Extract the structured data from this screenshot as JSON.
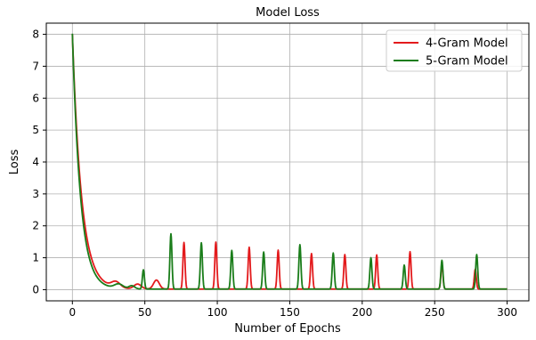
{
  "chart_data": {
    "type": "line",
    "title": "Model Loss",
    "xlabel": "Number of Epochs",
    "ylabel": "Loss",
    "xlim": [
      -18,
      315
    ],
    "ylim": [
      -0.35,
      8.35
    ],
    "xticks": [
      0,
      50,
      100,
      150,
      200,
      250,
      300
    ],
    "yticks": [
      0,
      1,
      2,
      3,
      4,
      5,
      6,
      7,
      8
    ],
    "grid": true,
    "legend": "top-right",
    "series": [
      {
        "name": "4-Gram Model",
        "color": "#e31a1c",
        "start": 8.0,
        "k": 0.16,
        "floor": 0.02,
        "extra": [
          [
            30,
            0.18,
            3
          ],
          [
            45,
            0.15,
            2.5
          ],
          [
            58,
            0.28,
            2
          ]
        ],
        "spikes": [
          [
            77,
            1.46
          ],
          [
            99,
            1.47
          ],
          [
            122,
            1.31
          ],
          [
            142,
            1.22
          ],
          [
            165,
            1.11
          ],
          [
            188,
            1.08
          ],
          [
            210,
            1.07
          ],
          [
            233,
            1.17
          ],
          [
            255,
            0.78
          ],
          [
            278,
            0.62
          ]
        ]
      },
      {
        "name": "5-Gram Model",
        "color": "#1a7d1a",
        "start": 8.02,
        "k": 0.18,
        "floor": 0.02,
        "extra": [
          [
            32,
            0.14,
            3
          ],
          [
            41,
            0.1,
            2
          ]
        ],
        "spikes": [
          [
            49,
            0.6
          ],
          [
            68,
            1.73
          ],
          [
            89,
            1.45
          ],
          [
            110,
            1.21
          ],
          [
            132,
            1.16
          ],
          [
            157,
            1.39
          ],
          [
            180,
            1.13
          ],
          [
            206,
            0.98
          ],
          [
            229,
            0.75
          ],
          [
            255,
            0.9
          ],
          [
            279,
            1.08
          ]
        ]
      }
    ]
  }
}
